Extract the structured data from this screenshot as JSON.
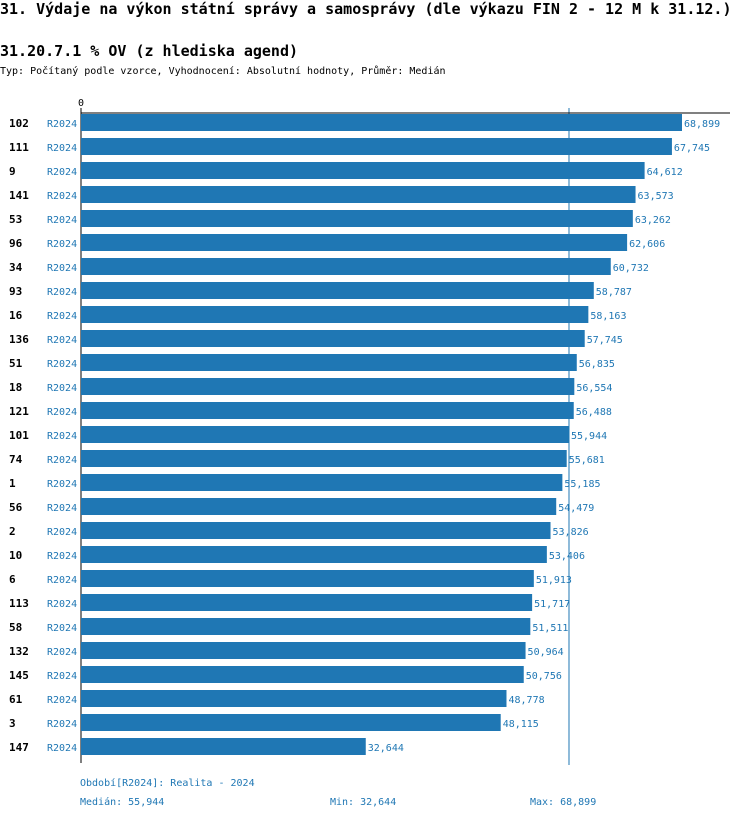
{
  "header": {
    "title": "31. Výdaje na výkon státní správy a samosprávy (dle výkazu FIN 2 - 12 M k 31.12.)",
    "subtitle": "31.20.7.1 % OV (z hlediska agend)",
    "type_line": "Typ: Počítaný podle vzorce, Vyhodnocení: Absolutní hodnoty, Průměr: Medián"
  },
  "colors": {
    "bar": "#1f77b4",
    "label": "#1f77b4",
    "axis": "#000000",
    "median_line": "#1f77b4"
  },
  "chart_data": {
    "type": "bar",
    "orientation": "horizontal",
    "axis_zero_label": "0",
    "xlim": [
      0,
      68.899
    ],
    "median": 55.944,
    "rows": [
      {
        "id": "102",
        "period": "R2024",
        "value": 68.899,
        "label": "68,899"
      },
      {
        "id": "111",
        "period": "R2024",
        "value": 67.745,
        "label": "67,745"
      },
      {
        "id": "9",
        "period": "R2024",
        "value": 64.612,
        "label": "64,612"
      },
      {
        "id": "141",
        "period": "R2024",
        "value": 63.573,
        "label": "63,573"
      },
      {
        "id": "53",
        "period": "R2024",
        "value": 63.262,
        "label": "63,262"
      },
      {
        "id": "96",
        "period": "R2024",
        "value": 62.606,
        "label": "62,606"
      },
      {
        "id": "34",
        "period": "R2024",
        "value": 60.732,
        "label": "60,732"
      },
      {
        "id": "93",
        "period": "R2024",
        "value": 58.787,
        "label": "58,787"
      },
      {
        "id": "16",
        "period": "R2024",
        "value": 58.163,
        "label": "58,163"
      },
      {
        "id": "136",
        "period": "R2024",
        "value": 57.745,
        "label": "57,745"
      },
      {
        "id": "51",
        "period": "R2024",
        "value": 56.835,
        "label": "56,835"
      },
      {
        "id": "18",
        "period": "R2024",
        "value": 56.554,
        "label": "56,554"
      },
      {
        "id": "121",
        "period": "R2024",
        "value": 56.488,
        "label": "56,488"
      },
      {
        "id": "101",
        "period": "R2024",
        "value": 55.944,
        "label": "55,944"
      },
      {
        "id": "74",
        "period": "R2024",
        "value": 55.681,
        "label": "55,681"
      },
      {
        "id": "1",
        "period": "R2024",
        "value": 55.185,
        "label": "55,185"
      },
      {
        "id": "56",
        "period": "R2024",
        "value": 54.479,
        "label": "54,479"
      },
      {
        "id": "2",
        "period": "R2024",
        "value": 53.826,
        "label": "53,826"
      },
      {
        "id": "10",
        "period": "R2024",
        "value": 53.406,
        "label": "53,406"
      },
      {
        "id": "6",
        "period": "R2024",
        "value": 51.913,
        "label": "51,913"
      },
      {
        "id": "113",
        "period": "R2024",
        "value": 51.717,
        "label": "51,717"
      },
      {
        "id": "58",
        "period": "R2024",
        "value": 51.511,
        "label": "51,511"
      },
      {
        "id": "132",
        "period": "R2024",
        "value": 50.964,
        "label": "50,964"
      },
      {
        "id": "145",
        "period": "R2024",
        "value": 50.756,
        "label": "50,756"
      },
      {
        "id": "61",
        "period": "R2024",
        "value": 48.778,
        "label": "48,778"
      },
      {
        "id": "3",
        "period": "R2024",
        "value": 48.115,
        "label": "48,115"
      },
      {
        "id": "147",
        "period": "R2024",
        "value": 32.644,
        "label": "32,644"
      }
    ]
  },
  "footer": {
    "period": "Období[R2024]: Realita - 2024",
    "median": "Medián: 55,944",
    "min": "Min: 32,644",
    "max": "Max: 68,899"
  }
}
